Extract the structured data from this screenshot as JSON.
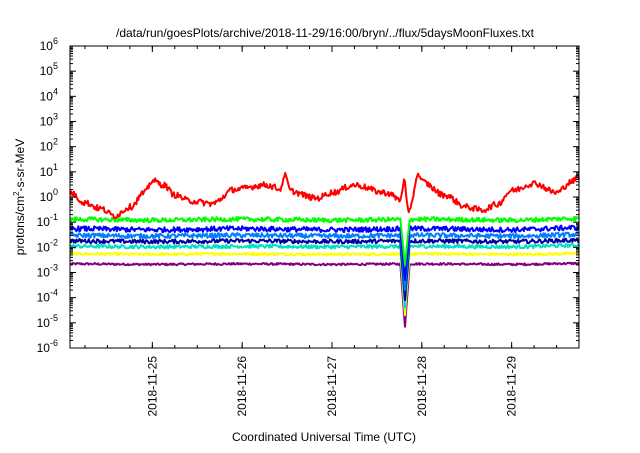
{
  "chart_data": {
    "type": "line",
    "title": "/data/run/goesPlots/archive/2018-11-29/16:00/bryn/../flux/5daysMoonFluxes.txt",
    "xlabel": "Coordinated Universal Time (UTC)",
    "ylabel": {
      "prefix": "protons/cm",
      "sup": "2",
      "suffix": "-s-sr-MeV"
    },
    "yscale": "log",
    "ylim": [
      1e-06,
      1000000.0
    ],
    "xlim": [
      "2018-11-24 02:00",
      "2018-11-29 18:00"
    ],
    "y_ticks": [
      {
        "value": 1e-06,
        "base": "10",
        "exp": "-6"
      },
      {
        "value": 1e-05,
        "base": "10",
        "exp": "-5"
      },
      {
        "value": 0.0001,
        "base": "10",
        "exp": "-4"
      },
      {
        "value": 0.001,
        "base": "10",
        "exp": "-3"
      },
      {
        "value": 0.01,
        "base": "10",
        "exp": "-2"
      },
      {
        "value": 0.1,
        "base": "10",
        "exp": "-1"
      },
      {
        "value": 1.0,
        "base": "10",
        "exp": "0"
      },
      {
        "value": 10.0,
        "base": "10",
        "exp": "1"
      },
      {
        "value": 100.0,
        "base": "10",
        "exp": "2"
      },
      {
        "value": 1000.0,
        "base": "10",
        "exp": "3"
      },
      {
        "value": 10000.0,
        "base": "10",
        "exp": "4"
      },
      {
        "value": 100000.0,
        "base": "10",
        "exp": "5"
      },
      {
        "value": 1000000.0,
        "base": "10",
        "exp": "6"
      }
    ],
    "x_ticks": [
      {
        "value": "2018-11-25 00:00",
        "label": "2018-11-25"
      },
      {
        "value": "2018-11-26 00:00",
        "label": "2018-11-26"
      },
      {
        "value": "2018-11-27 00:00",
        "label": "2018-11-27"
      },
      {
        "value": "2018-11-28 00:00",
        "label": "2018-11-28"
      },
      {
        "value": "2018-11-29 00:00",
        "label": "2018-11-29"
      }
    ],
    "grid": false,
    "legend": false,
    "series": [
      {
        "color": "#ff0000",
        "noise": 0.12,
        "points": [
          [
            "2018-11-24 02:00",
            1.5
          ],
          [
            "2018-11-24 06:00",
            0.6
          ],
          [
            "2018-11-24 10:00",
            0.35
          ],
          [
            "2018-11-24 14:00",
            0.18
          ],
          [
            "2018-11-24 18:00",
            0.4
          ],
          [
            "2018-11-24 22:00",
            1.5
          ],
          [
            "2018-11-25 00:00",
            4.5
          ],
          [
            "2018-11-25 03:00",
            3.0
          ],
          [
            "2018-11-25 06:00",
            1.2
          ],
          [
            "2018-11-25 10:00",
            0.7
          ],
          [
            "2018-11-25 16:00",
            0.55
          ],
          [
            "2018-11-25 22:00",
            2.0
          ],
          [
            "2018-11-26 06:00",
            3.0
          ],
          [
            "2018-11-26 12:00",
            1.8
          ],
          [
            "2018-11-26 20:00",
            0.9
          ],
          [
            "2018-11-27 00:00",
            1.5
          ],
          [
            "2018-11-27 06:00",
            3.0
          ],
          [
            "2018-11-27 14:00",
            1.5
          ],
          [
            "2018-11-27 20:00",
            0.6
          ],
          [
            "2018-11-28 00:00",
            4.0
          ],
          [
            "2018-11-28 06:00",
            1.2
          ],
          [
            "2018-11-28 12:00",
            0.4
          ],
          [
            "2018-11-28 16:00",
            0.3
          ],
          [
            "2018-11-28 20:00",
            0.5
          ],
          [
            "2018-11-29 00:00",
            1.8
          ],
          [
            "2018-11-29 06:00",
            3.5
          ],
          [
            "2018-11-29 12:00",
            1.5
          ],
          [
            "2018-11-29 16:00",
            4.0
          ],
          [
            "2018-11-29 18:00",
            6.5
          ]
        ],
        "spikes": [
          [
            "2018-11-26 11:30",
            9.0
          ],
          [
            "2018-11-27 19:30",
            8.0
          ],
          [
            "2018-11-27 20:30",
            0.25
          ],
          [
            "2018-11-27 23:00",
            8.5
          ]
        ]
      },
      {
        "color": "#00ff00",
        "noise": 0.09,
        "points": [
          [
            "2018-11-24 02:00",
            0.13
          ],
          [
            "2018-11-25 00:00",
            0.12
          ],
          [
            "2018-11-26 00:00",
            0.13
          ],
          [
            "2018-11-27 00:00",
            0.12
          ],
          [
            "2018-11-28 00:00",
            0.13
          ],
          [
            "2018-11-29 00:00",
            0.12
          ],
          [
            "2018-11-29 18:00",
            0.14
          ]
        ],
        "spikes": [
          [
            "2018-11-27 19:30",
            0.002
          ]
        ]
      },
      {
        "color": "#0000ff",
        "noise": 0.1,
        "points": [
          [
            "2018-11-24 02:00",
            0.055
          ],
          [
            "2018-11-25 00:00",
            0.05
          ],
          [
            "2018-11-26 00:00",
            0.055
          ],
          [
            "2018-11-27 00:00",
            0.05
          ],
          [
            "2018-11-28 00:00",
            0.055
          ],
          [
            "2018-11-29 00:00",
            0.05
          ],
          [
            "2018-11-29 18:00",
            0.06
          ]
        ],
        "spikes": [
          [
            "2018-11-27 19:30",
            0.0005
          ]
        ]
      },
      {
        "color": "#0080ff",
        "noise": 0.09,
        "points": [
          [
            "2018-11-24 02:00",
            0.03
          ],
          [
            "2018-11-25 00:00",
            0.028
          ],
          [
            "2018-11-26 00:00",
            0.03
          ],
          [
            "2018-11-27 00:00",
            0.028
          ],
          [
            "2018-11-28 00:00",
            0.03
          ],
          [
            "2018-11-29 00:00",
            0.028
          ],
          [
            "2018-11-29 18:00",
            0.032
          ]
        ],
        "spikes": [
          [
            "2018-11-27 19:30",
            0.0002
          ]
        ]
      },
      {
        "color": "#0000a0",
        "noise": 0.08,
        "points": [
          [
            "2018-11-24 02:00",
            0.018
          ],
          [
            "2018-11-25 00:00",
            0.017
          ],
          [
            "2018-11-26 00:00",
            0.018
          ],
          [
            "2018-11-27 00:00",
            0.017
          ],
          [
            "2018-11-28 00:00",
            0.018
          ],
          [
            "2018-11-29 00:00",
            0.017
          ],
          [
            "2018-11-29 18:00",
            0.019
          ]
        ],
        "spikes": [
          [
            "2018-11-27 19:30",
            8e-05
          ]
        ]
      },
      {
        "color": "#00e0c0",
        "noise": 0.07,
        "points": [
          [
            "2018-11-24 02:00",
            0.011
          ],
          [
            "2018-11-25 00:00",
            0.0105
          ],
          [
            "2018-11-26 00:00",
            0.011
          ],
          [
            "2018-11-27 00:00",
            0.0105
          ],
          [
            "2018-11-28 00:00",
            0.011
          ],
          [
            "2018-11-29 00:00",
            0.0105
          ],
          [
            "2018-11-29 18:00",
            0.012
          ]
        ],
        "spikes": [
          [
            "2018-11-27 19:30",
            4e-05
          ]
        ]
      },
      {
        "color": "#ffff00",
        "noise": 0.05,
        "points": [
          [
            "2018-11-24 02:00",
            0.0055
          ],
          [
            "2018-11-25 00:00",
            0.0053
          ],
          [
            "2018-11-26 00:00",
            0.0055
          ],
          [
            "2018-11-27 00:00",
            0.0053
          ],
          [
            "2018-11-28 00:00",
            0.0055
          ],
          [
            "2018-11-29 00:00",
            0.0053
          ],
          [
            "2018-11-29 18:00",
            0.0056
          ]
        ],
        "spikes": [
          [
            "2018-11-27 19:30",
            2e-05
          ]
        ]
      },
      {
        "color": "#800080",
        "noise": 0.04,
        "points": [
          [
            "2018-11-24 02:00",
            0.0022
          ],
          [
            "2018-11-25 00:00",
            0.0021
          ],
          [
            "2018-11-26 00:00",
            0.0022
          ],
          [
            "2018-11-27 00:00",
            0.0021
          ],
          [
            "2018-11-28 00:00",
            0.0022
          ],
          [
            "2018-11-29 00:00",
            0.0021
          ],
          [
            "2018-11-29 18:00",
            0.0023
          ]
        ],
        "spikes": [
          [
            "2018-11-27 19:30",
            7e-06
          ]
        ]
      }
    ]
  }
}
